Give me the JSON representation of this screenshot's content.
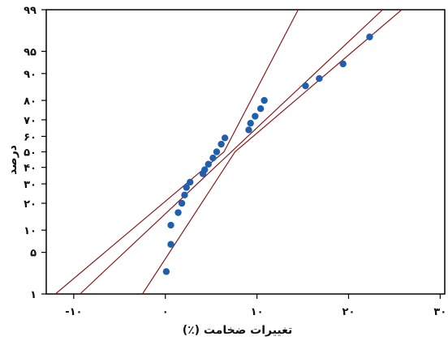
{
  "chart_data": {
    "type": "scatter",
    "title": "",
    "xlabel": "تغییرات ضخامت (٪)",
    "ylabel": "درصد",
    "xlim": [
      -13,
      30.5
    ],
    "ylim": [
      1,
      99
    ],
    "y_scale": "normal-probability",
    "grid": false,
    "x_ticks": [
      -10,
      0,
      10,
      20,
      30
    ],
    "x_tick_labels": [
      "-۱۰",
      "۰",
      "۱۰",
      "۲۰",
      "۳۰"
    ],
    "y_ticks": [
      1,
      5,
      10,
      20,
      30,
      40,
      50,
      60,
      70,
      80,
      90,
      95,
      99
    ],
    "y_tick_labels": [
      "۱",
      "۵",
      "۱۰",
      "۲۰",
      "۳۰",
      "۴۰",
      "۵۰",
      "۶۰",
      "۷۰",
      "۸۰",
      "۹۰",
      "۹۵",
      "۹۹"
    ],
    "colors": {
      "points": "#1f5fae",
      "fit_line": "#8b1a1a",
      "ci_lines": "#8b1a1a",
      "frame": "#000000"
    },
    "series": [
      {
        "values": [
          {
            "x": 0.1,
            "y": 2.5
          },
          {
            "x": 0.6,
            "y": 6.5
          },
          {
            "x": 0.6,
            "y": 11.5
          },
          {
            "x": 1.4,
            "y": 16
          },
          {
            "x": 1.8,
            "y": 20
          },
          {
            "x": 2.1,
            "y": 24
          },
          {
            "x": 2.3,
            "y": 28
          },
          {
            "x": 2.7,
            "y": 31
          },
          {
            "x": 4.1,
            "y": 36
          },
          {
            "x": 4.3,
            "y": 38.5
          },
          {
            "x": 4.7,
            "y": 42
          },
          {
            "x": 5.2,
            "y": 46
          },
          {
            "x": 5.6,
            "y": 50
          },
          {
            "x": 6.1,
            "y": 55
          },
          {
            "x": 6.5,
            "y": 59
          },
          {
            "x": 9.1,
            "y": 64
          },
          {
            "x": 9.3,
            "y": 68
          },
          {
            "x": 9.8,
            "y": 72
          },
          {
            "x": 10.4,
            "y": 76
          },
          {
            "x": 10.8,
            "y": 80
          },
          {
            "x": 15.3,
            "y": 86
          },
          {
            "x": 16.8,
            "y": 88.5
          },
          {
            "x": 19.4,
            "y": 92.5
          },
          {
            "x": 22.3,
            "y": 97
          }
        ]
      }
    ],
    "fit_line": {
      "mean": 7.2,
      "sd": 7.1
    },
    "ci_lines": {
      "lower": [
        {
          "x": -2.5,
          "y": 1
        },
        {
          "x": 7.6,
          "y": 50
        },
        {
          "x": 25.8,
          "y": 99
        }
      ],
      "upper": [
        {
          "x": -12,
          "y": 1
        },
        {
          "x": 6.4,
          "y": 50
        },
        {
          "x": 14.5,
          "y": 99
        }
      ]
    }
  }
}
